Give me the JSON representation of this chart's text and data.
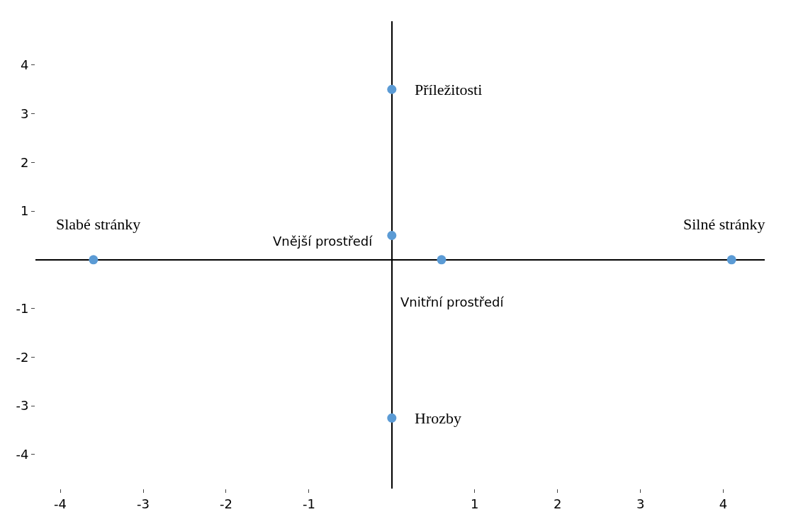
{
  "chart_data": {
    "type": "scatter",
    "x": [
      -3.6,
      0,
      0.6,
      4.1,
      0,
      0
    ],
    "series": [
      {
        "color": "#5b9bd5",
        "values": [
          0,
          0.5,
          0,
          0,
          3.5,
          -3.25
        ]
      }
    ],
    "marker": "circle",
    "xlim": [
      -4.3,
      4.5
    ],
    "ylim": [
      -4.7,
      4.9
    ],
    "xticks": [
      -4,
      -3,
      -2,
      -1,
      1,
      2,
      3,
      4
    ],
    "yticks": [
      -4,
      -3,
      -2,
      -1,
      1,
      2,
      3,
      4
    ],
    "annotations": [
      {
        "text": "Slabé stránky",
        "x": -3.6,
        "y": 0
      },
      {
        "text": "Vnější prostředí",
        "x": 0,
        "y": 0.5
      },
      {
        "text": "Vnitřní prostředí",
        "x": 0.6,
        "y": 0
      },
      {
        "text": "Silné stránky",
        "x": 4.1,
        "y": 0
      },
      {
        "text": "Příležitosti",
        "x": 0,
        "y": 3.5
      },
      {
        "text": "Hrozby",
        "x": 0,
        "y": -3.25
      }
    ]
  }
}
